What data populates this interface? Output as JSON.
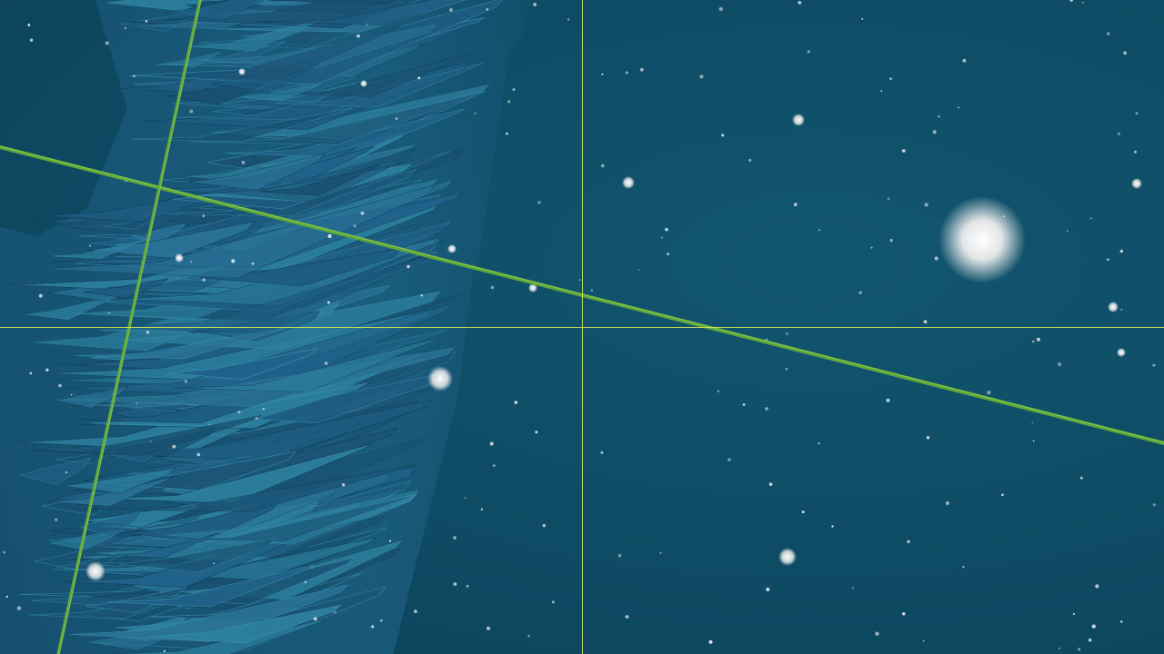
{
  "scene": {
    "background_color": "#0e4b64",
    "crosshair_color": "#d6e85a",
    "guide_line_color": "#5fa83a",
    "rock_color": "#1f5f86",
    "rock_highlight_color": "#2f86a8",
    "particle_color": "#e6ecef",
    "light_orb_color": "#f2f2f2"
  }
}
